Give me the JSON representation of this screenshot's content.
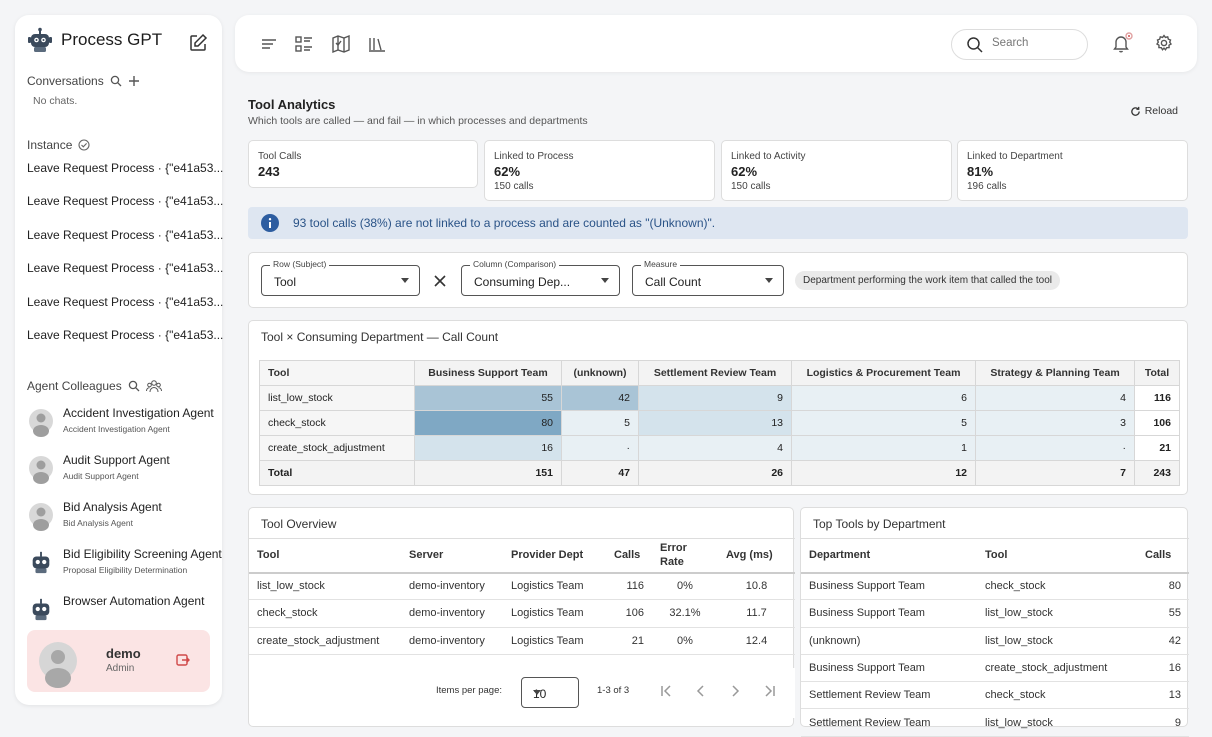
{
  "sidebar": {
    "brand": "Process GPT",
    "conversations_label": "Conversations",
    "no_chats": "No chats.",
    "instance_label": "Instance",
    "instances": [
      "Leave Request Process · {\"e41a53...",
      "Leave Request Process · {\"e41a53...",
      "Leave Request Process · {\"e41a53...",
      "Leave Request Process · {\"e41a53...",
      "Leave Request Process · {\"e41a53...",
      "Leave Request Process · {\"e41a53..."
    ],
    "agents_label": "Agent Colleagues",
    "agents": [
      {
        "name": "Accident Investigation Agent",
        "sub": "Accident Investigation Agent"
      },
      {
        "name": "Audit Support Agent",
        "sub": "Audit Support Agent"
      },
      {
        "name": "Bid Analysis Agent",
        "sub": "Bid Analysis Agent"
      },
      {
        "name": "Bid Eligibility Screening Agent",
        "sub": "Proposal Eligibility Determination"
      },
      {
        "name": "Browser Automation Agent",
        "sub": ""
      }
    ],
    "user": {
      "name": "demo",
      "role": "Admin"
    }
  },
  "topbar": {
    "icons": [
      "menu-icon",
      "list-icon",
      "map-icon",
      "library-icon"
    ],
    "search_placeholder": "Search"
  },
  "page": {
    "title": "Tool Analytics",
    "subtitle": "Which tools are called — and fail — in which processes and departments",
    "reload": "Reload"
  },
  "stats": [
    {
      "label": "Tool Calls",
      "value": "243",
      "count": ""
    },
    {
      "label": "Linked to Process",
      "value": "62%",
      "count": "150 calls"
    },
    {
      "label": "Linked to Activity",
      "value": "62%",
      "count": "150 calls"
    },
    {
      "label": "Linked to Department",
      "value": "81%",
      "count": "196 calls"
    }
  ],
  "info_text": "93 tool calls (38%) are not linked to a process and are counted as \"(Unknown)\".",
  "filters": {
    "row_label": "Row (Subject)",
    "row_value": "Tool",
    "col_label": "Column (Comparison)",
    "col_value": "Consuming Dep...",
    "measure_label": "Measure",
    "measure_value": "Call Count",
    "chip": "Department performing the work item that called the tool"
  },
  "pivot": {
    "title": "Tool × Consuming Department — Call Count",
    "row_header": "Tool",
    "columns": [
      "Business Support Team",
      "(unknown)",
      "Settlement Review Team",
      "Logistics & Procurement Team",
      "Strategy & Planning Team",
      "Total"
    ],
    "rows": [
      {
        "tool": "list_low_stock",
        "cells": [
          "55",
          "42",
          "9",
          "6",
          "4",
          "116"
        ]
      },
      {
        "tool": "check_stock",
        "cells": [
          "80",
          "5",
          "13",
          "5",
          "3",
          "106"
        ]
      },
      {
        "tool": "create_stock_adjustment",
        "cells": [
          "16",
          "·",
          "4",
          "1",
          "·",
          "21"
        ]
      }
    ],
    "total_label": "Total",
    "totals": [
      "151",
      "47",
      "26",
      "12",
      "7",
      "243"
    ],
    "heat": {
      "strong": "#7fa8c4",
      "mid": "#a9c4d6",
      "light": "#d4e3ec",
      "pale": "#e8f0f4"
    }
  },
  "overview": {
    "title": "Tool Overview",
    "headers": [
      "Tool",
      "Server",
      "Provider Dept",
      "Calls",
      "Error Rate",
      "Avg (ms)"
    ],
    "rows": [
      [
        "list_low_stock",
        "demo-inventory",
        "Logistics Team",
        "116",
        "0%",
        "10.8"
      ],
      [
        "check_stock",
        "demo-inventory",
        "Logistics Team",
        "106",
        "32.1%",
        "11.7"
      ],
      [
        "create_stock_adjustment",
        "demo-inventory",
        "Logistics Team",
        "21",
        "0%",
        "12.4"
      ]
    ],
    "items_per_page_label": "Items per page:",
    "items_per_page": "10",
    "range": "1-3 of 3"
  },
  "top_tools": {
    "title": "Top Tools by Department",
    "headers": [
      "Department",
      "Tool",
      "Calls"
    ],
    "rows": [
      [
        "Business Support Team",
        "check_stock",
        "80"
      ],
      [
        "Business Support Team",
        "list_low_stock",
        "55"
      ],
      [
        "(unknown)",
        "list_low_stock",
        "42"
      ],
      [
        "Business Support Team",
        "create_stock_adjustment",
        "16"
      ],
      [
        "Settlement Review Team",
        "check_stock",
        "13"
      ],
      [
        "Settlement Review Team",
        "list_low_stock",
        "9"
      ]
    ]
  }
}
